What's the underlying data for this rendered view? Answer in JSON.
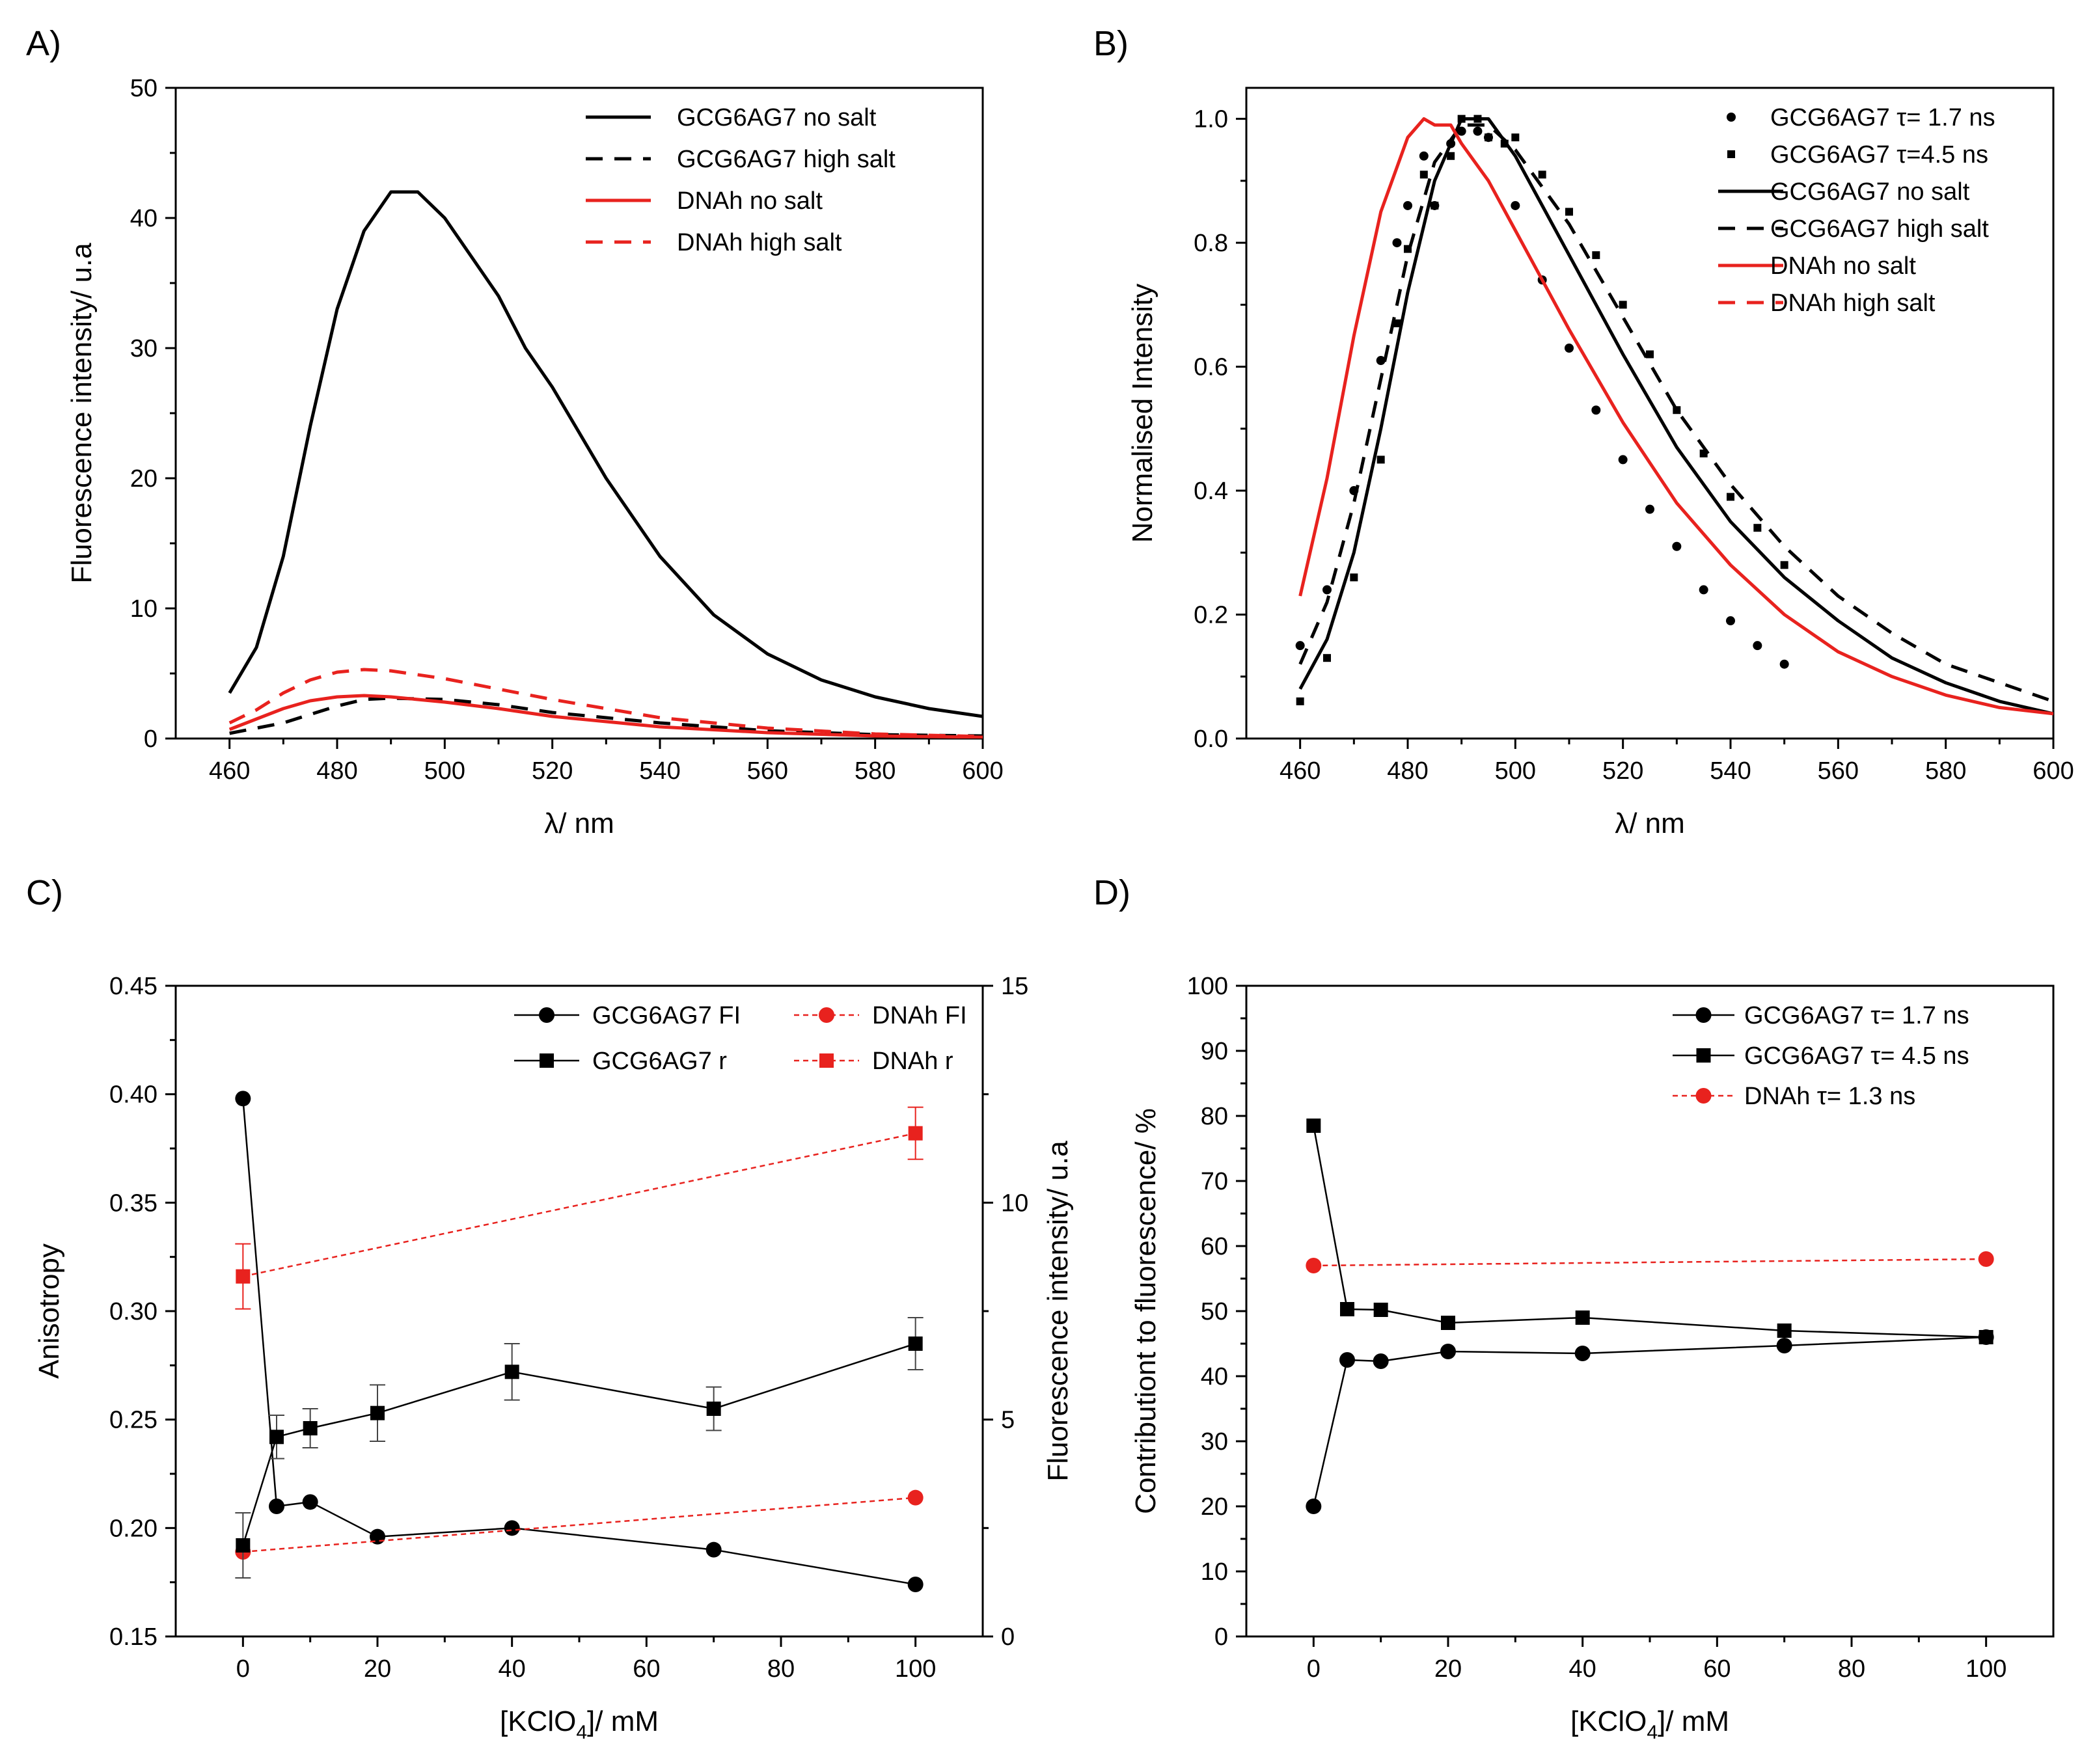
{
  "chart_data": [
    {
      "panel": "A)",
      "type": "line",
      "xlabel": "λ/ nm",
      "ylabel": "Fluorescence intensity/ u.a",
      "xlim": [
        450,
        600
      ],
      "ylim": [
        0,
        50
      ],
      "xticks": [
        460,
        480,
        500,
        520,
        540,
        560,
        580,
        600
      ],
      "yticks": [
        0,
        10,
        20,
        30,
        40,
        50
      ],
      "legend_position": "top-right",
      "series": [
        {
          "name": "GCG6AG7 no salt",
          "color": "#000000",
          "dash": "solid",
          "x": [
            460,
            465,
            470,
            475,
            480,
            485,
            490,
            495,
            500,
            505,
            510,
            515,
            520,
            530,
            540,
            550,
            560,
            570,
            580,
            590,
            600
          ],
          "y": [
            3.5,
            7,
            14,
            24,
            33,
            39,
            42,
            42,
            40,
            37,
            34,
            30,
            27,
            20,
            14,
            9.5,
            6.5,
            4.5,
            3.2,
            2.3,
            1.7
          ]
        },
        {
          "name": "GCG6AG7 high salt",
          "color": "#000000",
          "dash": "dashed",
          "x": [
            460,
            470,
            480,
            485,
            490,
            500,
            510,
            520,
            540,
            560,
            580,
            600
          ],
          "y": [
            0.4,
            1.2,
            2.5,
            3,
            3.1,
            3,
            2.6,
            2,
            1.2,
            0.6,
            0.3,
            0.2
          ]
        },
        {
          "name": "DNAh no salt",
          "color": "#e8221e",
          "dash": "solid",
          "x": [
            460,
            465,
            470,
            475,
            480,
            485,
            490,
            500,
            510,
            520,
            540,
            560,
            580,
            600
          ],
          "y": [
            0.7,
            1.5,
            2.3,
            2.9,
            3.2,
            3.3,
            3.2,
            2.8,
            2.3,
            1.7,
            0.9,
            0.45,
            0.2,
            0.1
          ]
        },
        {
          "name": "DNAh high salt",
          "color": "#e8221e",
          "dash": "dashed",
          "x": [
            460,
            465,
            470,
            475,
            480,
            485,
            490,
            500,
            510,
            520,
            530,
            540,
            560,
            580,
            600
          ],
          "y": [
            1.2,
            2.2,
            3.5,
            4.5,
            5.1,
            5.3,
            5.2,
            4.6,
            3.8,
            3,
            2.3,
            1.6,
            0.8,
            0.35,
            0.15
          ]
        }
      ]
    },
    {
      "panel": "B)",
      "type": "line",
      "xlabel": "λ/ nm",
      "ylabel": "Normalised Intensity",
      "xlim": [
        450,
        600
      ],
      "ylim": [
        0,
        1.05
      ],
      "xticks": [
        460,
        480,
        500,
        520,
        540,
        560,
        580,
        600
      ],
      "yticks": [
        0.0,
        0.2,
        0.4,
        0.6,
        0.8,
        1.0
      ],
      "legend_position": "top-right",
      "series": [
        {
          "name": "GCG6AG7 τ= 1.7 ns",
          "color": "#000000",
          "marker": "circle",
          "x": [
            460,
            465,
            470,
            475,
            478,
            480,
            483,
            485,
            488,
            490,
            493,
            495,
            500,
            505,
            510,
            515,
            520,
            525,
            530,
            535,
            540,
            545,
            550
          ],
          "y": [
            0.15,
            0.24,
            0.4,
            0.61,
            0.8,
            0.86,
            0.94,
            0.86,
            0.96,
            0.98,
            0.98,
            0.97,
            0.86,
            0.74,
            0.63,
            0.53,
            0.45,
            0.37,
            0.31,
            0.24,
            0.19,
            0.15,
            0.12
          ]
        },
        {
          "name": "GCG6AG7 τ=4.5 ns",
          "color": "#000000",
          "marker": "square",
          "x": [
            460,
            465,
            470,
            475,
            478,
            480,
            483,
            485,
            488,
            490,
            493,
            495,
            498,
            500,
            505,
            510,
            515,
            520,
            525,
            530,
            535,
            540,
            545,
            550
          ],
          "y": [
            0.06,
            0.13,
            0.26,
            0.45,
            0.67,
            0.79,
            0.91,
            0.86,
            0.94,
            1.0,
            1.0,
            0.97,
            0.96,
            0.97,
            0.91,
            0.85,
            0.78,
            0.7,
            0.62,
            0.53,
            0.46,
            0.39,
            0.34,
            0.28
          ]
        },
        {
          "name": "GCG6AG7 no salt",
          "color": "#000000",
          "dash": "solid",
          "x": [
            460,
            465,
            470,
            475,
            480,
            485,
            488,
            490,
            495,
            500,
            505,
            510,
            520,
            530,
            540,
            550,
            560,
            570,
            580,
            590,
            600
          ],
          "y": [
            0.08,
            0.16,
            0.3,
            0.5,
            0.72,
            0.9,
            0.96,
            1.0,
            1.0,
            0.94,
            0.86,
            0.78,
            0.62,
            0.47,
            0.35,
            0.26,
            0.19,
            0.13,
            0.09,
            0.06,
            0.04
          ]
        },
        {
          "name": "GCG6AG7 high salt",
          "color": "#000000",
          "dash": "dashed",
          "x": [
            460,
            465,
            470,
            475,
            480,
            485,
            490,
            495,
            500,
            510,
            520,
            530,
            540,
            550,
            560,
            570,
            580,
            590,
            600
          ],
          "y": [
            0.12,
            0.22,
            0.38,
            0.58,
            0.78,
            0.93,
            0.99,
            0.99,
            0.95,
            0.83,
            0.68,
            0.53,
            0.41,
            0.31,
            0.23,
            0.17,
            0.12,
            0.09,
            0.06
          ]
        },
        {
          "name": "DNAh no salt",
          "color": "#e8221e",
          "dash": "solid",
          "x": [
            460,
            465,
            470,
            475,
            480,
            483,
            485,
            488,
            490,
            495,
            500,
            510,
            520,
            530,
            540,
            550,
            560,
            570,
            580,
            590,
            600
          ],
          "y": [
            0.23,
            0.42,
            0.65,
            0.85,
            0.97,
            1.0,
            0.99,
            0.99,
            0.96,
            0.9,
            0.82,
            0.66,
            0.51,
            0.38,
            0.28,
            0.2,
            0.14,
            0.1,
            0.07,
            0.05,
            0.04
          ]
        },
        {
          "name": "DNAh high salt",
          "color": "#e8221e",
          "dash": "dashed",
          "x": [],
          "y": []
        }
      ]
    },
    {
      "panel": "C)",
      "type": "line",
      "xlabel": "[KClO",
      "xlabel_sub": "4",
      "xlabel_suffix": "]/ mM",
      "ylabel": "Anisotropy",
      "ylabel_right": "Fluorescence intensity/ u.a",
      "xlim": [
        -10,
        110
      ],
      "ylim": [
        0.15,
        0.45
      ],
      "ylim_right": [
        0,
        15
      ],
      "xticks": [
        0,
        20,
        40,
        60,
        80,
        100
      ],
      "yticks": [
        0.15,
        0.2,
        0.25,
        0.3,
        0.35,
        0.4,
        0.45
      ],
      "yticks_right": [
        0,
        5,
        10,
        15
      ],
      "legend_position": "top-right",
      "series": [
        {
          "name": "GCG6AG7 FI",
          "color": "#000000",
          "marker": "circle",
          "dash": "solid",
          "axis": "right",
          "x": [
            0,
            5,
            10,
            20,
            40,
            70,
            100
          ],
          "y": [
            12.4,
            3.0,
            3.1,
            2.3,
            2.5,
            2.0,
            1.2
          ]
        },
        {
          "name": "DNAh FI",
          "color": "#e8221e",
          "marker": "circle",
          "dash": "dashed",
          "axis": "right",
          "x": [
            0,
            100
          ],
          "y": [
            1.95,
            3.2
          ]
        },
        {
          "name": "GCG6AG7 r",
          "color": "#000000",
          "marker": "square",
          "dash": "solid",
          "axis": "left",
          "x": [
            0,
            5,
            10,
            20,
            40,
            70,
            100
          ],
          "y": [
            0.192,
            0.242,
            0.246,
            0.253,
            0.272,
            0.255,
            0.285
          ],
          "err": [
            0.015,
            0.01,
            0.009,
            0.013,
            0.013,
            0.01,
            0.012
          ]
        },
        {
          "name": "DNAh r",
          "color": "#e8221e",
          "marker": "square",
          "dash": "dashed",
          "axis": "left",
          "x": [
            0,
            100
          ],
          "y": [
            0.316,
            0.382
          ],
          "err": [
            0.015,
            0.012
          ]
        }
      ]
    },
    {
      "panel": "D)",
      "type": "line",
      "xlabel": "[KClO",
      "xlabel_sub": "4",
      "xlabel_suffix": "]/ mM",
      "ylabel": "Contributiont to fluorescence/ %",
      "xlim": [
        -10,
        110
      ],
      "ylim": [
        0,
        100
      ],
      "xticks": [
        0,
        20,
        40,
        60,
        80,
        100
      ],
      "yticks": [
        0,
        10,
        20,
        30,
        40,
        50,
        60,
        70,
        80,
        90,
        100
      ],
      "legend_position": "top-right",
      "series": [
        {
          "name": "GCG6AG7 τ= 1.7 ns",
          "color": "#000000",
          "marker": "circle",
          "dash": "solid",
          "x": [
            0,
            5,
            10,
            20,
            40,
            70,
            100
          ],
          "y": [
            20,
            42.5,
            42.3,
            43.8,
            43.5,
            44.7,
            46
          ]
        },
        {
          "name": "GCG6AG7 τ= 4.5 ns",
          "color": "#000000",
          "marker": "square",
          "dash": "solid",
          "x": [
            0,
            5,
            10,
            20,
            40,
            70,
            100
          ],
          "y": [
            78.5,
            50.3,
            50.2,
            48.2,
            49,
            47,
            46
          ]
        },
        {
          "name": "DNAh τ= 1.3 ns",
          "color": "#e8221e",
          "marker": "circle",
          "dash": "dashed",
          "x": [
            0,
            100
          ],
          "y": [
            57,
            58
          ]
        }
      ]
    }
  ]
}
